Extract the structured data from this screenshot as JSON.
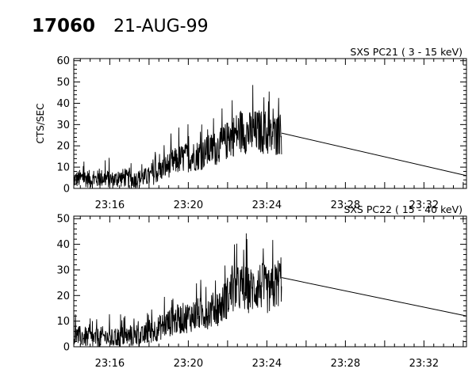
{
  "header": {
    "id": "17060",
    "date": "21-AUG-99"
  },
  "chart_data": [
    {
      "type": "line",
      "title": "SXS PC21  (  3 - 15 keV)",
      "xlabel": "",
      "ylabel": "CTS/SEC",
      "xlim": [
        "23:14:10",
        "23:34:10"
      ],
      "ylim": [
        0,
        61
      ],
      "y_ticks": [
        0,
        10,
        20,
        30,
        40,
        50,
        60
      ],
      "x_ticks": [
        "23:16",
        "23:20",
        "23:24",
        "23:28",
        "23:32"
      ],
      "grid": false,
      "series": [
        {
          "points": [
            [
              "23:14:10",
              4
            ],
            [
              "23:14:40",
              5
            ],
            [
              "23:15:10",
              4
            ],
            [
              "23:15:40",
              5
            ],
            [
              "23:16:10",
              4
            ],
            [
              "23:16:40",
              5
            ],
            [
              "23:17:10",
              4
            ],
            [
              "23:17:40",
              5
            ],
            [
              "23:18:10",
              6
            ],
            [
              "23:18:40",
              9
            ],
            [
              "23:19:10",
              12
            ],
            [
              "23:19:40",
              14
            ],
            [
              "23:20:10",
              15
            ],
            [
              "23:20:40",
              16
            ],
            [
              "23:21:10",
              18
            ],
            [
              "23:21:40",
              20
            ],
            [
              "23:22:10",
              24
            ],
            [
              "23:22:40",
              27
            ],
            [
              "23:23:10",
              26
            ],
            [
              "23:23:40",
              27
            ],
            [
              "23:24:10",
              24
            ],
            [
              "23:24:45",
              26
            ],
            [
              "23:34:10",
              6
            ]
          ]
        }
      ]
    },
    {
      "type": "line",
      "title": "SXS PC22  ( 15 - 40 keV)",
      "xlabel": "",
      "ylabel": "",
      "xlim": [
        "23:14:10",
        "23:34:10"
      ],
      "ylim": [
        0,
        51
      ],
      "y_ticks": [
        0,
        10,
        20,
        30,
        40,
        50
      ],
      "x_ticks": [
        "23:16",
        "23:20",
        "23:24",
        "23:28",
        "23:32"
      ],
      "grid": false,
      "series": [
        {
          "points": [
            [
              "23:14:10",
              4
            ],
            [
              "23:14:40",
              4
            ],
            [
              "23:15:10",
              3
            ],
            [
              "23:15:40",
              4
            ],
            [
              "23:16:10",
              3
            ],
            [
              "23:16:40",
              4
            ],
            [
              "23:17:10",
              4
            ],
            [
              "23:17:40",
              4
            ],
            [
              "23:18:10",
              6
            ],
            [
              "23:18:40",
              8
            ],
            [
              "23:19:10",
              10
            ],
            [
              "23:19:40",
              11
            ],
            [
              "23:20:10",
              12
            ],
            [
              "23:20:40",
              13
            ],
            [
              "23:21:10",
              14
            ],
            [
              "23:21:40",
              16
            ],
            [
              "23:22:10",
              21
            ],
            [
              "23:22:40",
              23
            ],
            [
              "23:23:10",
              22
            ],
            [
              "23:23:40",
              24
            ],
            [
              "23:24:10",
              21
            ],
            [
              "23:24:45",
              27
            ],
            [
              "23:34:10",
              12
            ]
          ]
        }
      ]
    }
  ]
}
